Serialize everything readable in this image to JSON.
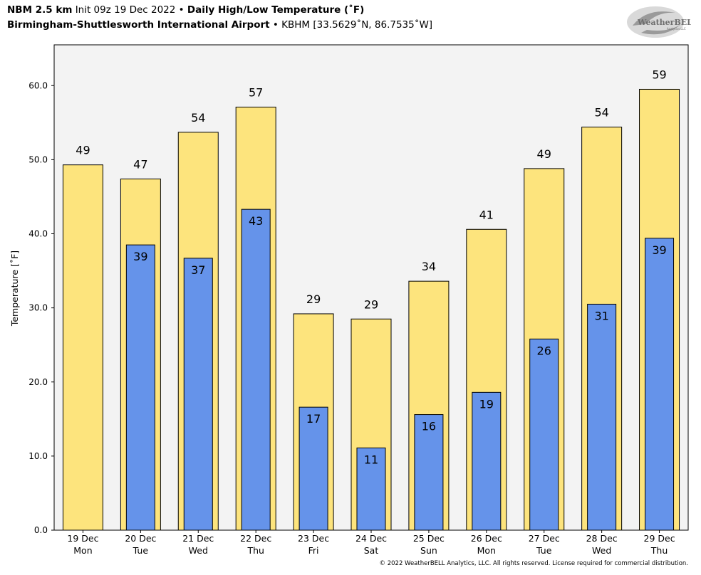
{
  "header": {
    "model": "NBM 2.5 km",
    "init": "Init 09z 19 Dec 2022",
    "separator": "•",
    "title": "Daily High/Low Temperature (˚F)",
    "location": "Birmingham-Shuttlesworth International Airport",
    "station": "KBHM [33.5629˚N, 86.7535˚W]"
  },
  "logo": {
    "text": "WeatherBELL",
    "subtext": "Analytics LLC"
  },
  "footer": "© 2022 WeatherBELL Analytics, LLC. All rights reserved. License required for commercial distribution.",
  "chart_data": {
    "type": "bar",
    "categories": [
      "19 Dec\nMon",
      "20 Dec\nTue",
      "21 Dec\nWed",
      "22 Dec\nThu",
      "23 Dec\nFri",
      "24 Dec\nSat",
      "25 Dec\nSun",
      "26 Dec\nMon",
      "27 Dec\nTue",
      "28 Dec\nWed",
      "29 Dec\nThu"
    ],
    "series": [
      {
        "values": [
          49.3,
          47.4,
          53.7,
          57.1,
          29.2,
          28.5,
          33.6,
          40.6,
          48.8,
          54.4,
          59.5
        ],
        "labels": [
          "49",
          "47",
          "54",
          "57",
          "29",
          "29",
          "34",
          "41",
          "49",
          "54",
          "59"
        ],
        "color": "#fde47d"
      },
      {
        "values": [
          null,
          38.5,
          36.7,
          43.3,
          16.6,
          11.1,
          15.6,
          18.6,
          25.8,
          30.5,
          39.4
        ],
        "labels": [
          "",
          "39",
          "37",
          "43",
          "17",
          "11",
          "16",
          "19",
          "26",
          "31",
          "39"
        ],
        "color": "#6593ea"
      }
    ],
    "ylabel": "Temperature [˚F]",
    "ylim": [
      0,
      65.5
    ],
    "yticks": [
      "0.0",
      "10.0",
      "20.0",
      "30.0",
      "40.0",
      "50.0",
      "60.0"
    ],
    "grid": false,
    "background": "#f3f3f3"
  }
}
